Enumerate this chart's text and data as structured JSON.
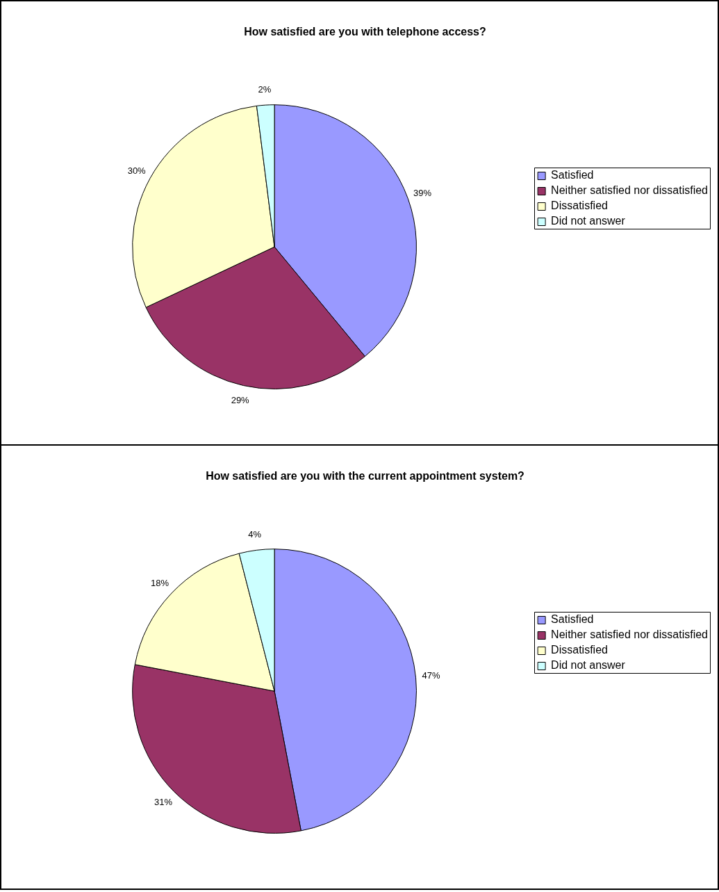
{
  "chart_data": [
    {
      "type": "pie",
      "title": "How satisfied are you with telephone access?",
      "categories": [
        "Satisfied",
        "Neither satisfied nor dissatisfied",
        "Dissatisfied",
        "Did not answer"
      ],
      "values": [
        39,
        29,
        30,
        2
      ],
      "colors": [
        "#9999ff",
        "#993366",
        "#ffffcc",
        "#ccffff"
      ],
      "value_labels": [
        "39%",
        "29%",
        "30%",
        "2%"
      ],
      "legend": "right"
    },
    {
      "type": "pie",
      "title": "How satisfied are you with the current appointment system?",
      "categories": [
        "Satisfied",
        "Neither satisfied nor dissatisfied",
        "Dissatisfied",
        "Did not answer"
      ],
      "values": [
        47,
        31,
        18,
        4
      ],
      "colors": [
        "#9999ff",
        "#993366",
        "#ffffcc",
        "#ccffff"
      ],
      "value_labels": [
        "47%",
        "31%",
        "18%",
        "4%"
      ],
      "legend": "right"
    }
  ]
}
